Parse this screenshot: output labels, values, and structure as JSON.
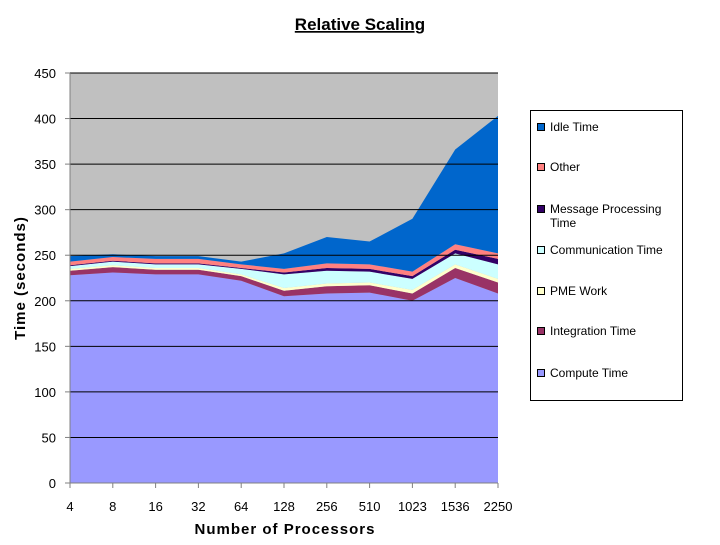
{
  "chart_data": {
    "type": "area",
    "stacked": true,
    "title": "Relative Scaling",
    "xlabel": "Number of Processors",
    "ylabel": "Time (seconds)",
    "ylim": [
      0,
      450
    ],
    "yticks": [
      0,
      50,
      100,
      150,
      200,
      250,
      300,
      350,
      400,
      450
    ],
    "categories": [
      "4",
      "8",
      "16",
      "32",
      "64",
      "128",
      "256",
      "510",
      "1023",
      "1536",
      "2250"
    ],
    "grid": true,
    "legend_position": "right",
    "plot_background": "#c0c0c0",
    "series": [
      {
        "name": "Compute Time",
        "color": "#9999ff",
        "values": [
          228,
          231,
          229,
          229,
          222,
          205,
          208,
          209,
          200,
          225,
          208
        ]
      },
      {
        "name": "Integration Time",
        "color": "#993366",
        "values": [
          5,
          6,
          5,
          5,
          5,
          6,
          8,
          8,
          8,
          11,
          12
        ]
      },
      {
        "name": "PME Work",
        "color": "#ffffcc",
        "values": [
          2,
          2,
          2,
          2,
          2,
          3,
          3,
          3,
          4,
          4,
          4
        ]
      },
      {
        "name": "Communication Time",
        "color": "#ccffff",
        "values": [
          3,
          4,
          4,
          4,
          6,
          15,
          14,
          12,
          12,
          12,
          16
        ]
      },
      {
        "name": "Message Processing Time",
        "color": "#330066",
        "values": [
          1,
          1,
          1,
          1,
          1,
          2,
          3,
          3,
          3,
          4,
          6
        ]
      },
      {
        "name": "Other",
        "color": "#ff8080",
        "values": [
          4,
          4,
          5,
          5,
          4,
          4,
          5,
          5,
          5,
          6,
          6
        ]
      },
      {
        "name": "Idle Time",
        "color": "#0066cc",
        "values": [
          6,
          3,
          3,
          3,
          3,
          17,
          29,
          25,
          58,
          104,
          151
        ]
      }
    ]
  }
}
